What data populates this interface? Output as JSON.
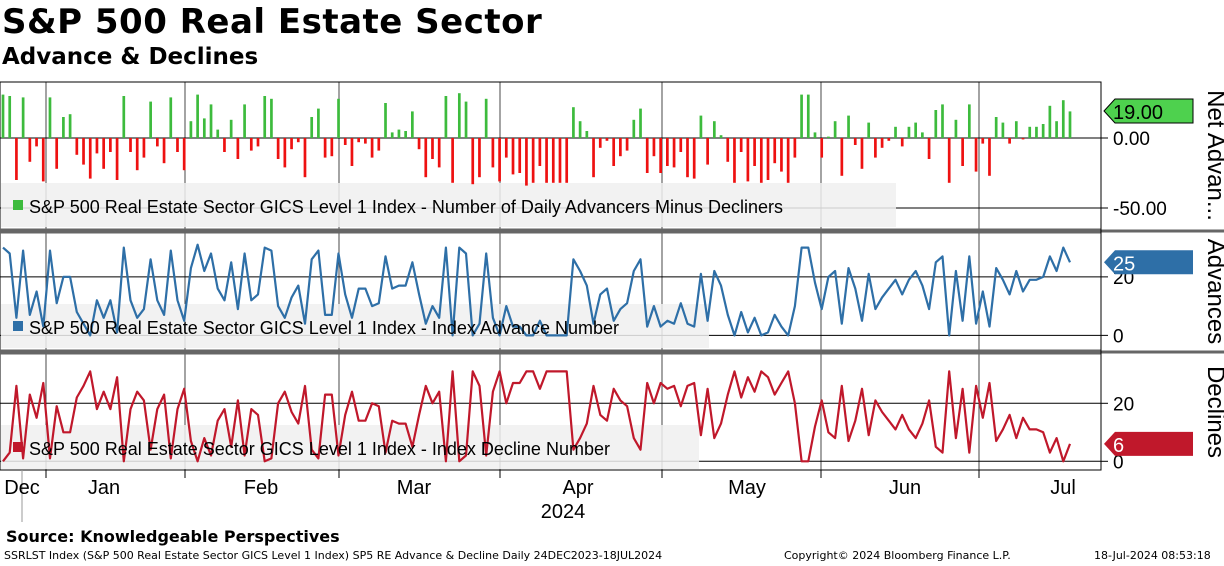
{
  "title": "S&P 500 Real Estate Sector",
  "subtitle": "Advance & Declines",
  "source": "Source: Knowledgeable Perspectives",
  "footer": {
    "left": "SSRLST Index (S&P 500 Real Estate Sector GICS Level 1 Index) SP5 RE Advance & Decline  Daily 24DEC2023-18JUL2024",
    "mid": "Copyright© 2024 Bloomberg Finance L.P.",
    "right": "18-Jul-2024 08:53:18"
  },
  "colors": {
    "net_up": "#3dbb3d",
    "net_down": "#ee1111",
    "advances": "#2e6fa7",
    "declines": "#c0182b"
  },
  "chart_data": {
    "type": "line",
    "x_axis": {
      "months": [
        "Dec",
        "Jan",
        "Feb",
        "Mar",
        "Apr",
        "May",
        "Jun",
        "Jul"
      ],
      "year": "2024"
    },
    "panels": [
      {
        "id": "net",
        "kind": "bar",
        "axis_label": "Net Advan...",
        "legend": "S&P 500 Real Estate Sector GICS Level 1 Index - Number of Daily Advancers Minus Decliners",
        "ylim": [
          -65,
          40
        ],
        "ticks": [
          "0.00",
          "-50.00"
        ],
        "tick_values": [
          0,
          -50
        ],
        "last_value": "19.00",
        "values": [
          31,
          30,
          -30,
          29,
          -17,
          -6,
          -31,
          29,
          -22,
          15,
          17,
          -12,
          -19,
          -29,
          -11,
          -22,
          -10,
          -30,
          30,
          -10,
          -23,
          -14,
          26,
          -6,
          -18,
          29,
          -10,
          -23,
          12,
          31,
          14,
          24,
          6,
          -10,
          13,
          -15,
          24,
          -9,
          -6,
          30,
          28,
          -15,
          -21,
          -8,
          -3,
          -28,
          15,
          21,
          -14,
          -13,
          28,
          -5,
          -20,
          -3,
          -4,
          -14,
          -9,
          25,
          4,
          6,
          5,
          19,
          -8,
          -28,
          -15,
          -21,
          30,
          -32,
          32,
          26,
          -33,
          -28,
          28,
          -21,
          -31,
          -14,
          -26,
          -25,
          -34,
          -32,
          -20,
          -32,
          -32,
          -32,
          -32,
          22,
          12,
          5,
          -28,
          -7,
          -2,
          -20,
          -13,
          -9,
          13,
          21,
          -25,
          -13,
          -25,
          -20,
          -21,
          -10,
          -28,
          -29,
          16,
          -19,
          12,
          2,
          -17,
          -32,
          -10,
          -31,
          -20,
          -32,
          -30,
          -18,
          -24,
          -32,
          -14,
          31,
          31,
          4,
          -14,
          1,
          12,
          -27,
          16,
          -5,
          -22,
          11,
          -14,
          -7,
          -2,
          8,
          -6,
          8,
          11,
          4,
          -15,
          20,
          24,
          -32,
          13,
          -20,
          24,
          -24,
          -4,
          -27,
          15,
          11,
          -4,
          12,
          -1,
          8,
          8,
          10,
          23,
          12,
          27,
          19
        ]
      },
      {
        "id": "adv",
        "kind": "line",
        "axis_label": "Advances",
        "legend": "S&P 500 Real Estate Sector GICS Level 1 Index - Index Advance Number",
        "ylim": [
          -5,
          35
        ],
        "ticks": [
          "20",
          "0"
        ],
        "tick_values": [
          20,
          0
        ],
        "last_value": "25",
        "values": [
          30,
          28,
          6,
          29,
          7,
          15,
          3,
          29,
          11,
          20,
          20,
          8,
          4,
          0,
          12,
          6,
          12,
          1,
          30,
          12,
          6,
          9,
          26,
          12,
          7,
          29,
          12,
          5,
          23,
          31,
          22,
          28,
          16,
          12,
          25,
          9,
          28,
          12,
          14,
          30,
          29,
          10,
          6,
          13,
          17,
          4,
          26,
          29,
          7,
          7,
          28,
          14,
          6,
          16,
          16,
          10,
          11,
          27,
          16,
          17,
          17,
          25,
          14,
          4,
          10,
          6,
          30,
          0,
          30,
          28,
          0,
          4,
          28,
          6,
          0,
          10,
          3,
          3,
          0,
          0,
          5,
          0,
          0,
          0,
          0,
          26,
          22,
          17,
          4,
          14,
          16,
          5,
          9,
          11,
          22,
          26,
          3,
          10,
          3,
          5,
          4,
          11,
          4,
          3,
          21,
          5,
          22,
          17,
          7,
          0,
          8,
          1,
          6,
          0,
          1,
          7,
          3,
          0,
          10,
          30,
          30,
          18,
          9,
          20,
          22,
          4,
          23,
          16,
          5,
          21,
          9,
          13,
          16,
          19,
          14,
          19,
          22,
          17,
          9,
          25,
          27,
          0,
          22,
          5,
          27,
          4,
          15,
          3,
          23,
          19,
          14,
          22,
          15,
          19,
          19,
          20,
          27,
          22,
          30,
          25
        ]
      },
      {
        "id": "dec",
        "kind": "line",
        "axis_label": "Declines",
        "legend": "S&P 500 Real Estate Sector GICS Level 1 Index - Index Decline Number",
        "ylim": [
          -3,
          37
        ],
        "ticks": [
          "20",
          "0"
        ],
        "tick_values": [
          20,
          0
        ],
        "last_value": "6",
        "values": [
          0,
          3,
          26,
          1,
          23,
          15,
          27,
          1,
          19,
          10,
          10,
          22,
          26,
          31,
          18,
          24,
          18,
          29,
          0,
          18,
          24,
          21,
          4,
          18,
          23,
          1,
          18,
          25,
          7,
          0,
          8,
          2,
          14,
          18,
          5,
          21,
          2,
          18,
          16,
          0,
          1,
          20,
          24,
          17,
          13,
          26,
          4,
          1,
          23,
          23,
          2,
          16,
          24,
          14,
          14,
          20,
          19,
          3,
          14,
          13,
          13,
          5,
          16,
          26,
          20,
          24,
          0,
          31,
          0,
          2,
          31,
          26,
          2,
          24,
          31,
          20,
          27,
          27,
          31,
          31,
          25,
          31,
          31,
          31,
          31,
          4,
          8,
          13,
          26,
          16,
          14,
          25,
          21,
          19,
          8,
          4,
          27,
          20,
          27,
          25,
          26,
          19,
          26,
          27,
          9,
          25,
          8,
          13,
          23,
          31,
          22,
          29,
          24,
          31,
          29,
          23,
          27,
          31,
          20,
          0,
          0,
          12,
          21,
          10,
          8,
          26,
          7,
          14,
          25,
          9,
          21,
          17,
          14,
          11,
          16,
          11,
          8,
          13,
          21,
          5,
          3,
          31,
          8,
          25,
          3,
          26,
          15,
          27,
          7,
          11,
          16,
          8,
          15,
          11,
          11,
          10,
          3,
          8,
          0,
          6
        ]
      }
    ]
  }
}
